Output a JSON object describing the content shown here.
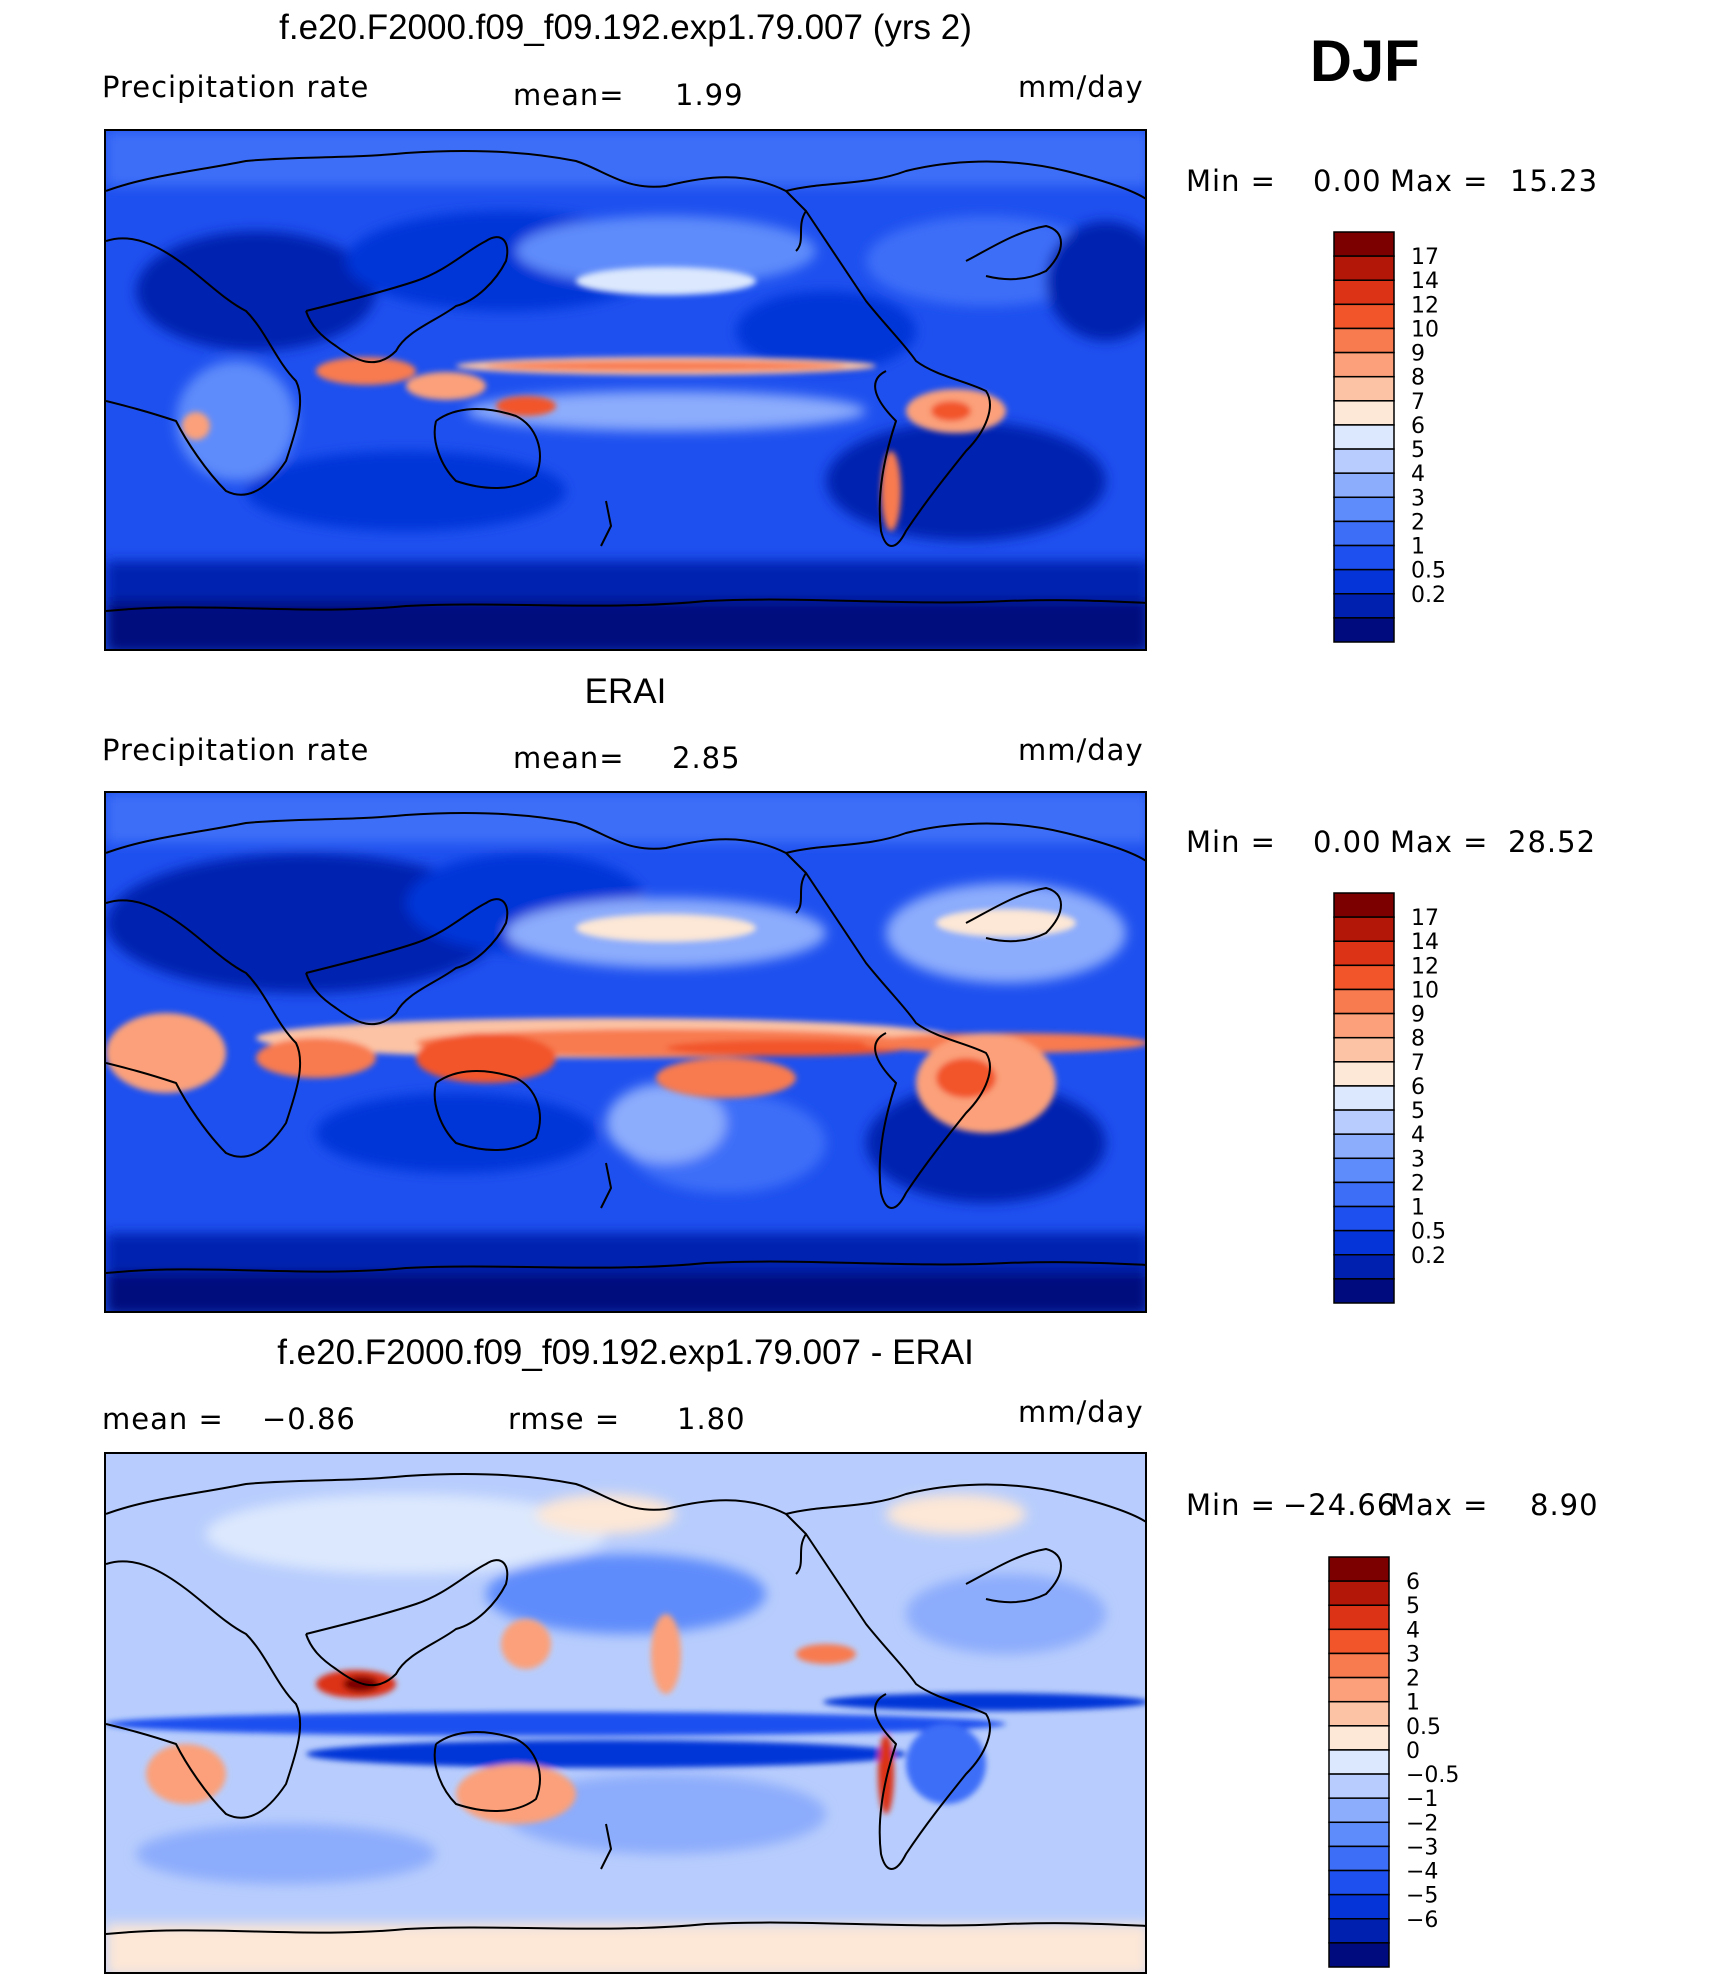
{
  "season": "DJF",
  "panels": [
    {
      "id": "model",
      "title": "f.e20.F2000.f09_f09.192.exp1.79.007 (yrs 2)",
      "left_label": "Precipitation  rate",
      "mid_label": "mean=",
      "mid_value": "1.99",
      "right_label": "mm/day",
      "stats_min_label": "Min  =",
      "stats_min": "0.00",
      "stats_max_label": "Max  =",
      "stats_max": "15.23"
    },
    {
      "id": "obs",
      "title": "ERAI",
      "left_label": "Precipitation  rate",
      "mid_label": "mean=",
      "mid_value": "2.85",
      "right_label": "mm/day",
      "stats_min_label": "Min  =",
      "stats_min": "0.00",
      "stats_max_label": "Max  =",
      "stats_max": "28.52"
    },
    {
      "id": "diff",
      "title": "f.e20.F2000.f09_f09.192.exp1.79.007 - ERAI",
      "left_label": "mean  =",
      "left_value": "−0.86",
      "mid_label": "rmse  =",
      "mid_value": "1.80",
      "right_label": "mm/day",
      "stats_min_label": "Min  =",
      "stats_min": "−24.66",
      "stats_max_label": "Max  =",
      "stats_max": "8.90"
    }
  ],
  "chart_data": [
    {
      "type": "heatmap",
      "title": "f.e20.F2000.f09_f09.192.exp1.79.007 (yrs 2)",
      "units": "mm/day",
      "mean": 1.99,
      "min": 0.0,
      "max": 15.23,
      "levels": [
        "0.2",
        "0.5",
        "1",
        "2",
        "3",
        "4",
        "5",
        "6",
        "7",
        "8",
        "9",
        "10",
        "12",
        "14",
        "17"
      ],
      "colors": [
        "#000c7d",
        "#0020b0",
        "#0535d8",
        "#1e50ef",
        "#3d6ef8",
        "#5f8cfb",
        "#8cacfc",
        "#b8cdfd",
        "#dce8fd",
        "#fde7d6",
        "#fcc3a4",
        "#fba07a",
        "#f87a4f",
        "#f2552a",
        "#dc3316",
        "#b31708",
        "#7d0000"
      ]
    },
    {
      "type": "heatmap",
      "title": "ERAI",
      "units": "mm/day",
      "mean": 2.85,
      "min": 0.0,
      "max": 28.52,
      "levels": [
        "0.2",
        "0.5",
        "1",
        "2",
        "3",
        "4",
        "5",
        "6",
        "7",
        "8",
        "9",
        "10",
        "12",
        "14",
        "17"
      ],
      "colors": [
        "#000c7d",
        "#0020b0",
        "#0535d8",
        "#1e50ef",
        "#3d6ef8",
        "#5f8cfb",
        "#8cacfc",
        "#b8cdfd",
        "#dce8fd",
        "#fde7d6",
        "#fcc3a4",
        "#fba07a",
        "#f87a4f",
        "#f2552a",
        "#dc3316",
        "#b31708",
        "#7d0000"
      ]
    },
    {
      "type": "heatmap",
      "title": "f.e20.F2000.f09_f09.192.exp1.79.007 - ERAI",
      "units": "mm/day",
      "mean": -0.86,
      "rmse": 1.8,
      "min": -24.66,
      "max": 8.9,
      "levels": [
        "−6",
        "−5",
        "−4",
        "−3",
        "−2",
        "−1",
        "−0.5",
        "0",
        "0.5",
        "1",
        "2",
        "3",
        "4",
        "5",
        "6"
      ],
      "colors": [
        "#000c7d",
        "#0020b0",
        "#0535d8",
        "#1e50ef",
        "#3d6ef8",
        "#5f8cfb",
        "#8cacfc",
        "#b8cdfd",
        "#dce8fd",
        "#fde7d6",
        "#fcc3a4",
        "#fba07a",
        "#f87a4f",
        "#f2552a",
        "#dc3316",
        "#b31708",
        "#7d0000"
      ]
    }
  ]
}
